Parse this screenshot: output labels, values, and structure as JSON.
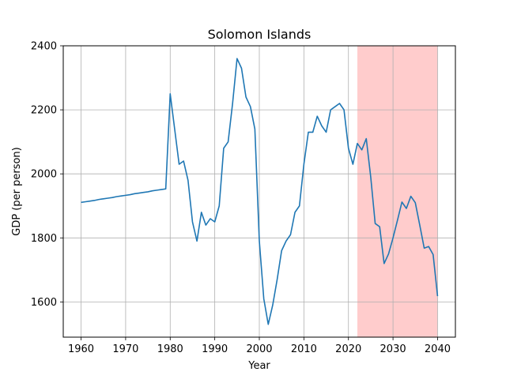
{
  "chart_data": {
    "type": "line",
    "title": "Solomon Islands",
    "xlabel": "Year",
    "ylabel": "GDP (per person)",
    "xlim": [
      1956,
      2044
    ],
    "ylim": [
      1490,
      2400
    ],
    "xticks": [
      1960,
      1970,
      1980,
      1990,
      2000,
      2010,
      2020,
      2030,
      2040
    ],
    "yticks": [
      1600,
      1800,
      2000,
      2200,
      2400
    ],
    "grid": true,
    "shaded_region": {
      "x_start": 2022,
      "x_end": 2040,
      "color": "#ffcccc"
    },
    "series": [
      {
        "color": "#1f77b4",
        "points": [
          [
            1960,
            1911
          ],
          [
            1961,
            1913
          ],
          [
            1962,
            1915
          ],
          [
            1963,
            1917
          ],
          [
            1964,
            1920
          ],
          [
            1965,
            1922
          ],
          [
            1966,
            1924
          ],
          [
            1967,
            1926
          ],
          [
            1968,
            1929
          ],
          [
            1969,
            1931
          ],
          [
            1970,
            1933
          ],
          [
            1971,
            1935
          ],
          [
            1972,
            1938
          ],
          [
            1973,
            1940
          ],
          [
            1974,
            1942
          ],
          [
            1975,
            1944
          ],
          [
            1976,
            1947
          ],
          [
            1977,
            1949
          ],
          [
            1978,
            1951
          ],
          [
            1979,
            1953
          ],
          [
            1980,
            2250
          ],
          [
            1981,
            2140
          ],
          [
            1982,
            2030
          ],
          [
            1983,
            2040
          ],
          [
            1984,
            1980
          ],
          [
            1985,
            1850
          ],
          [
            1986,
            1790
          ],
          [
            1987,
            1880
          ],
          [
            1988,
            1840
          ],
          [
            1989,
            1860
          ],
          [
            1990,
            1850
          ],
          [
            1991,
            1900
          ],
          [
            1992,
            2080
          ],
          [
            1993,
            2100
          ],
          [
            1994,
            2220
          ],
          [
            1995,
            2360
          ],
          [
            1996,
            2330
          ],
          [
            1997,
            2240
          ],
          [
            1998,
            2210
          ],
          [
            1999,
            2140
          ],
          [
            2000,
            1790
          ],
          [
            2001,
            1610
          ],
          [
            2002,
            1530
          ],
          [
            2003,
            1590
          ],
          [
            2004,
            1670
          ],
          [
            2005,
            1760
          ],
          [
            2006,
            1790
          ],
          [
            2007,
            1810
          ],
          [
            2008,
            1880
          ],
          [
            2009,
            1900
          ],
          [
            2010,
            2030
          ],
          [
            2011,
            2130
          ],
          [
            2012,
            2130
          ],
          [
            2013,
            2180
          ],
          [
            2014,
            2150
          ],
          [
            2015,
            2130
          ],
          [
            2016,
            2200
          ],
          [
            2017,
            2210
          ],
          [
            2018,
            2220
          ],
          [
            2019,
            2200
          ],
          [
            2020,
            2080
          ],
          [
            2021,
            2030
          ],
          [
            2022,
            2095
          ],
          [
            2023,
            2075
          ],
          [
            2024,
            2110
          ],
          [
            2025,
            1990
          ],
          [
            2026,
            1845
          ],
          [
            2027,
            1835
          ],
          [
            2028,
            1720
          ],
          [
            2029,
            1750
          ],
          [
            2030,
            1800
          ],
          [
            2031,
            1855
          ],
          [
            2032,
            1912
          ],
          [
            2033,
            1892
          ],
          [
            2034,
            1930
          ],
          [
            2035,
            1910
          ],
          [
            2036,
            1840
          ],
          [
            2037,
            1768
          ],
          [
            2038,
            1773
          ],
          [
            2039,
            1748
          ],
          [
            2040,
            1618
          ]
        ]
      }
    ]
  }
}
